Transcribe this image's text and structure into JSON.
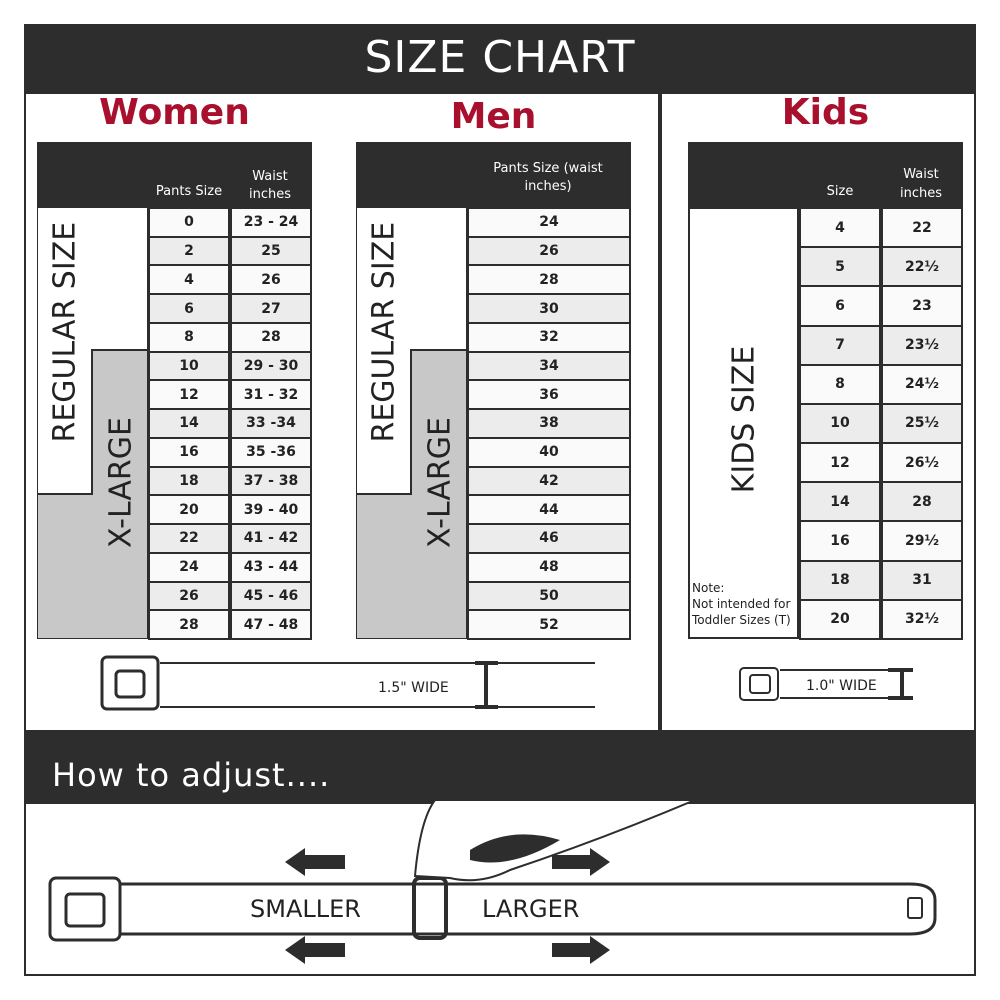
{
  "title": "SIZE CHART",
  "women": {
    "title": "Women",
    "col1": "Pants Size",
    "col2": "Waist inches",
    "regular_label": "REGULAR SIZE",
    "xlarge_label": "X-LARGE",
    "rows": [
      [
        "0",
        "23 - 24"
      ],
      [
        "2",
        "25"
      ],
      [
        "4",
        "26"
      ],
      [
        "6",
        "27"
      ],
      [
        "8",
        "28"
      ],
      [
        "10",
        "29 - 30"
      ],
      [
        "12",
        "31 - 32"
      ],
      [
        "14",
        "33 -34"
      ],
      [
        "16",
        "35 -36"
      ],
      [
        "18",
        "37 - 38"
      ],
      [
        "20",
        "39 - 40"
      ],
      [
        "22",
        "41 - 42"
      ],
      [
        "24",
        "43 - 44"
      ],
      [
        "26",
        "45 - 46"
      ],
      [
        "28",
        "47 - 48"
      ]
    ],
    "belt_width": "1.5\" WIDE"
  },
  "men": {
    "title": "Men",
    "col1": "Pants Size (waist inches)",
    "regular_label": "REGULAR SIZE",
    "xlarge_label": "X-LARGE",
    "rows": [
      "24",
      "26",
      "28",
      "30",
      "32",
      "34",
      "36",
      "38",
      "40",
      "42",
      "44",
      "46",
      "48",
      "50",
      "52"
    ]
  },
  "kids": {
    "title": "Kids",
    "col1": "Size",
    "col2": "Waist inches",
    "size_label": "KIDS SIZE",
    "note": "Note:",
    "note_text": "Not intended for Toddler Sizes (T)",
    "rows": [
      [
        "4",
        "22"
      ],
      [
        "5",
        "22½"
      ],
      [
        "6",
        "23"
      ],
      [
        "7",
        "23½"
      ],
      [
        "8",
        "24½"
      ],
      [
        "10",
        "25½"
      ],
      [
        "12",
        "26½"
      ],
      [
        "14",
        "28"
      ],
      [
        "16",
        "29½"
      ],
      [
        "18",
        "31"
      ],
      [
        "20",
        "32½"
      ]
    ],
    "belt_width": "1.0\" WIDE"
  },
  "adjust": {
    "title": "How to adjust....",
    "smaller": "SMALLER",
    "larger": "LARGER"
  },
  "colors": {
    "dark": "#2d2d2d",
    "accent": "#a8102e",
    "gray": "#c8c8c8"
  }
}
